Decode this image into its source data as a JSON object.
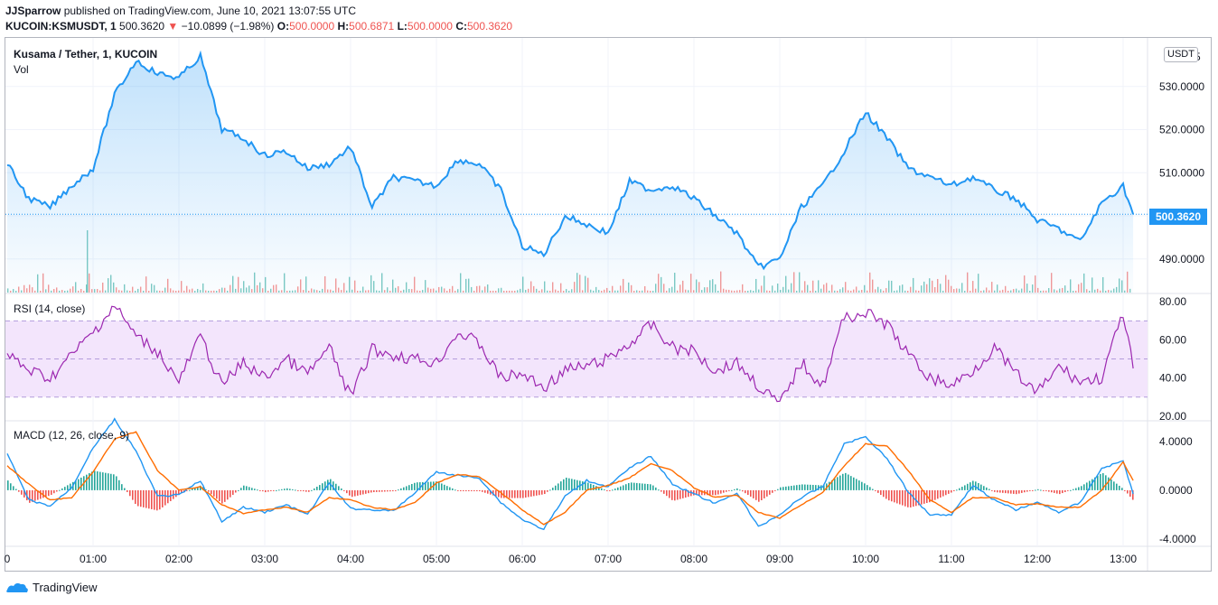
{
  "header": {
    "author": "JJSparrow",
    "published_text": "published on TradingView.com, June 10, 2021 13:07:55 UTC",
    "symbol": "KUCOIN:KSMUSDT, 1",
    "last": "500.3620",
    "change_arrow": "▼",
    "change": "−10.0899 (−1.98%)",
    "o_label": "O:",
    "o_value": "500.0000",
    "h_label": "H:",
    "h_value": "500.6871",
    "l_label": "L:",
    "l_value": "500.0000",
    "c_label": "C:",
    "c_value": "500.3620"
  },
  "pane_titles": {
    "main": "Kusama / Tether, 1, KUCOIN",
    "vol": "Vol",
    "rsi": "RSI (14, close)",
    "macd": "MACD (12, 26, close, 9)"
  },
  "currency_badge": "USDT",
  "price_tag": "500.3620",
  "footer_brand": "TradingView",
  "colors": {
    "price_line": "#2196f3",
    "rsi_line": "#9c27b0",
    "rsi_band": "#f3e5fc",
    "macd_line": "#2196f3",
    "signal_line": "#ff6d00",
    "hist_up": "#26a69a",
    "hist_down": "#ef5350"
  },
  "chart_data": [
    {
      "type": "area",
      "name": "price",
      "x_ticks": [
        "0",
        "01:00",
        "02:00",
        "03:00",
        "04:00",
        "05:00",
        "06:00",
        "07:00",
        "08:00",
        "09:00",
        "10:00",
        "11:00",
        "12:00",
        "13:00"
      ],
      "y_ticks": [
        "490.0000",
        "500.0000",
        "510.0000",
        "520.0000",
        "530.0000"
      ],
      "ylim": [
        482,
        540
      ],
      "top_tick_partial": "5",
      "x": [
        "00:00",
        "00:15",
        "00:30",
        "00:45",
        "01:00",
        "01:15",
        "01:30",
        "01:45",
        "02:00",
        "02:15",
        "02:30",
        "02:45",
        "03:00",
        "03:15",
        "03:30",
        "03:45",
        "04:00",
        "04:15",
        "04:30",
        "04:45",
        "05:00",
        "05:15",
        "05:30",
        "05:45",
        "06:00",
        "06:15",
        "06:30",
        "06:45",
        "07:00",
        "07:15",
        "07:30",
        "07:45",
        "08:00",
        "08:15",
        "08:30",
        "08:45",
        "09:00",
        "09:15",
        "09:30",
        "09:45",
        "10:00",
        "10:15",
        "10:30",
        "10:45",
        "11:00",
        "11:15",
        "11:30",
        "11:45",
        "12:00",
        "12:15",
        "12:30",
        "12:45",
        "13:00",
        "13:07"
      ],
      "y": [
        512,
        504,
        502,
        507,
        511,
        528,
        536,
        533,
        532,
        537,
        520,
        518,
        514,
        515,
        511,
        512,
        516,
        502,
        509,
        508,
        507,
        513,
        512,
        506,
        493,
        491,
        500,
        498,
        496,
        508,
        506,
        507,
        504,
        500,
        496,
        488,
        490,
        502,
        507,
        515,
        524,
        518,
        511,
        509,
        507,
        509,
        506,
        504,
        499,
        497,
        494,
        503,
        507,
        500.362
      ]
    },
    {
      "type": "bar",
      "name": "Vol",
      "note": "volume bars along the bottom of the price pane"
    },
    {
      "type": "line",
      "name": "RSI",
      "y_ticks": [
        "20.00",
        "40.00",
        "60.00",
        "80.00"
      ],
      "ylim": [
        18,
        82
      ],
      "bands": [
        30,
        50,
        70
      ],
      "x": [
        "00:00",
        "00:15",
        "00:30",
        "00:45",
        "01:00",
        "01:15",
        "01:30",
        "01:45",
        "02:00",
        "02:15",
        "02:30",
        "02:45",
        "03:00",
        "03:15",
        "03:30",
        "03:45",
        "04:00",
        "04:15",
        "04:30",
        "04:45",
        "05:00",
        "05:15",
        "05:30",
        "05:45",
        "06:00",
        "06:15",
        "06:30",
        "06:45",
        "07:00",
        "07:15",
        "07:30",
        "07:45",
        "08:00",
        "08:15",
        "08:30",
        "08:45",
        "09:00",
        "09:15",
        "09:30",
        "09:45",
        "10:00",
        "10:15",
        "10:30",
        "10:45",
        "11:00",
        "11:15",
        "11:30",
        "11:45",
        "12:00",
        "12:15",
        "12:30",
        "12:45",
        "13:00",
        "13:07"
      ],
      "y": [
        52,
        44,
        40,
        52,
        64,
        78,
        62,
        54,
        38,
        62,
        36,
        48,
        40,
        50,
        42,
        56,
        30,
        55,
        52,
        50,
        48,
        64,
        58,
        40,
        42,
        35,
        44,
        46,
        50,
        58,
        68,
        56,
        54,
        44,
        48,
        36,
        26,
        48,
        36,
        72,
        74,
        68,
        52,
        40,
        36,
        44,
        56,
        42,
        32,
        46,
        38,
        40,
        74,
        45
      ]
    },
    {
      "type": "line",
      "name": "MACD",
      "y_ticks": [
        "-4.0000",
        "0.0000",
        "4.0000"
      ],
      "ylim": [
        -4.6,
        5.4
      ],
      "x": [
        "00:00",
        "00:15",
        "00:30",
        "00:45",
        "01:00",
        "01:15",
        "01:30",
        "01:45",
        "02:00",
        "02:15",
        "02:30",
        "02:45",
        "03:00",
        "03:15",
        "03:30",
        "03:45",
        "04:00",
        "04:15",
        "04:30",
        "04:45",
        "05:00",
        "05:15",
        "05:30",
        "05:45",
        "06:00",
        "06:15",
        "06:30",
        "06:45",
        "07:00",
        "07:15",
        "07:30",
        "07:45",
        "08:00",
        "08:15",
        "08:30",
        "08:45",
        "09:00",
        "09:15",
        "09:30",
        "09:45",
        "10:00",
        "10:15",
        "10:30",
        "10:45",
        "11:00",
        "11:15",
        "11:30",
        "11:45",
        "12:00",
        "12:15",
        "12:30",
        "12:45",
        "13:00",
        "13:07"
      ],
      "macd": [
        3.0,
        -0.8,
        -1.3,
        0.2,
        3.5,
        5.8,
        3.2,
        -0.5,
        -0.4,
        0.8,
        -2.6,
        -1.4,
        -1.8,
        -1.2,
        -2.0,
        0.6,
        -1.5,
        -1.6,
        -1.7,
        -0.2,
        1.5,
        1.2,
        1.0,
        -1.0,
        -2.4,
        -3.2,
        -0.5,
        0.8,
        0.3,
        1.8,
        2.8,
        0.5,
        -0.3,
        -1.1,
        -0.2,
        -3.0,
        -2.0,
        -0.6,
        0.3,
        3.8,
        4.4,
        2.6,
        -0.2,
        -2.0,
        -2.0,
        0.4,
        -0.8,
        -1.6,
        -1.0,
        -1.8,
        -1.0,
        1.8,
        2.4,
        -0.3
      ],
      "signal": [
        2.0,
        0.5,
        -0.8,
        -0.6,
        1.5,
        4.2,
        4.8,
        1.6,
        0.0,
        0.3,
        -1.2,
        -1.9,
        -1.6,
        -1.4,
        -1.8,
        -0.6,
        -0.8,
        -1.4,
        -1.6,
        -1.0,
        0.6,
        1.3,
        1.1,
        -0.2,
        -1.6,
        -2.8,
        -1.8,
        0.0,
        0.4,
        1.0,
        2.2,
        1.6,
        0.2,
        -0.6,
        -0.4,
        -1.8,
        -2.3,
        -1.2,
        -0.2,
        2.0,
        3.8,
        3.6,
        1.6,
        -0.8,
        -1.8,
        -0.6,
        -0.6,
        -1.2,
        -1.1,
        -1.4,
        -1.4,
        0.0,
        2.3,
        0.8
      ]
    }
  ]
}
